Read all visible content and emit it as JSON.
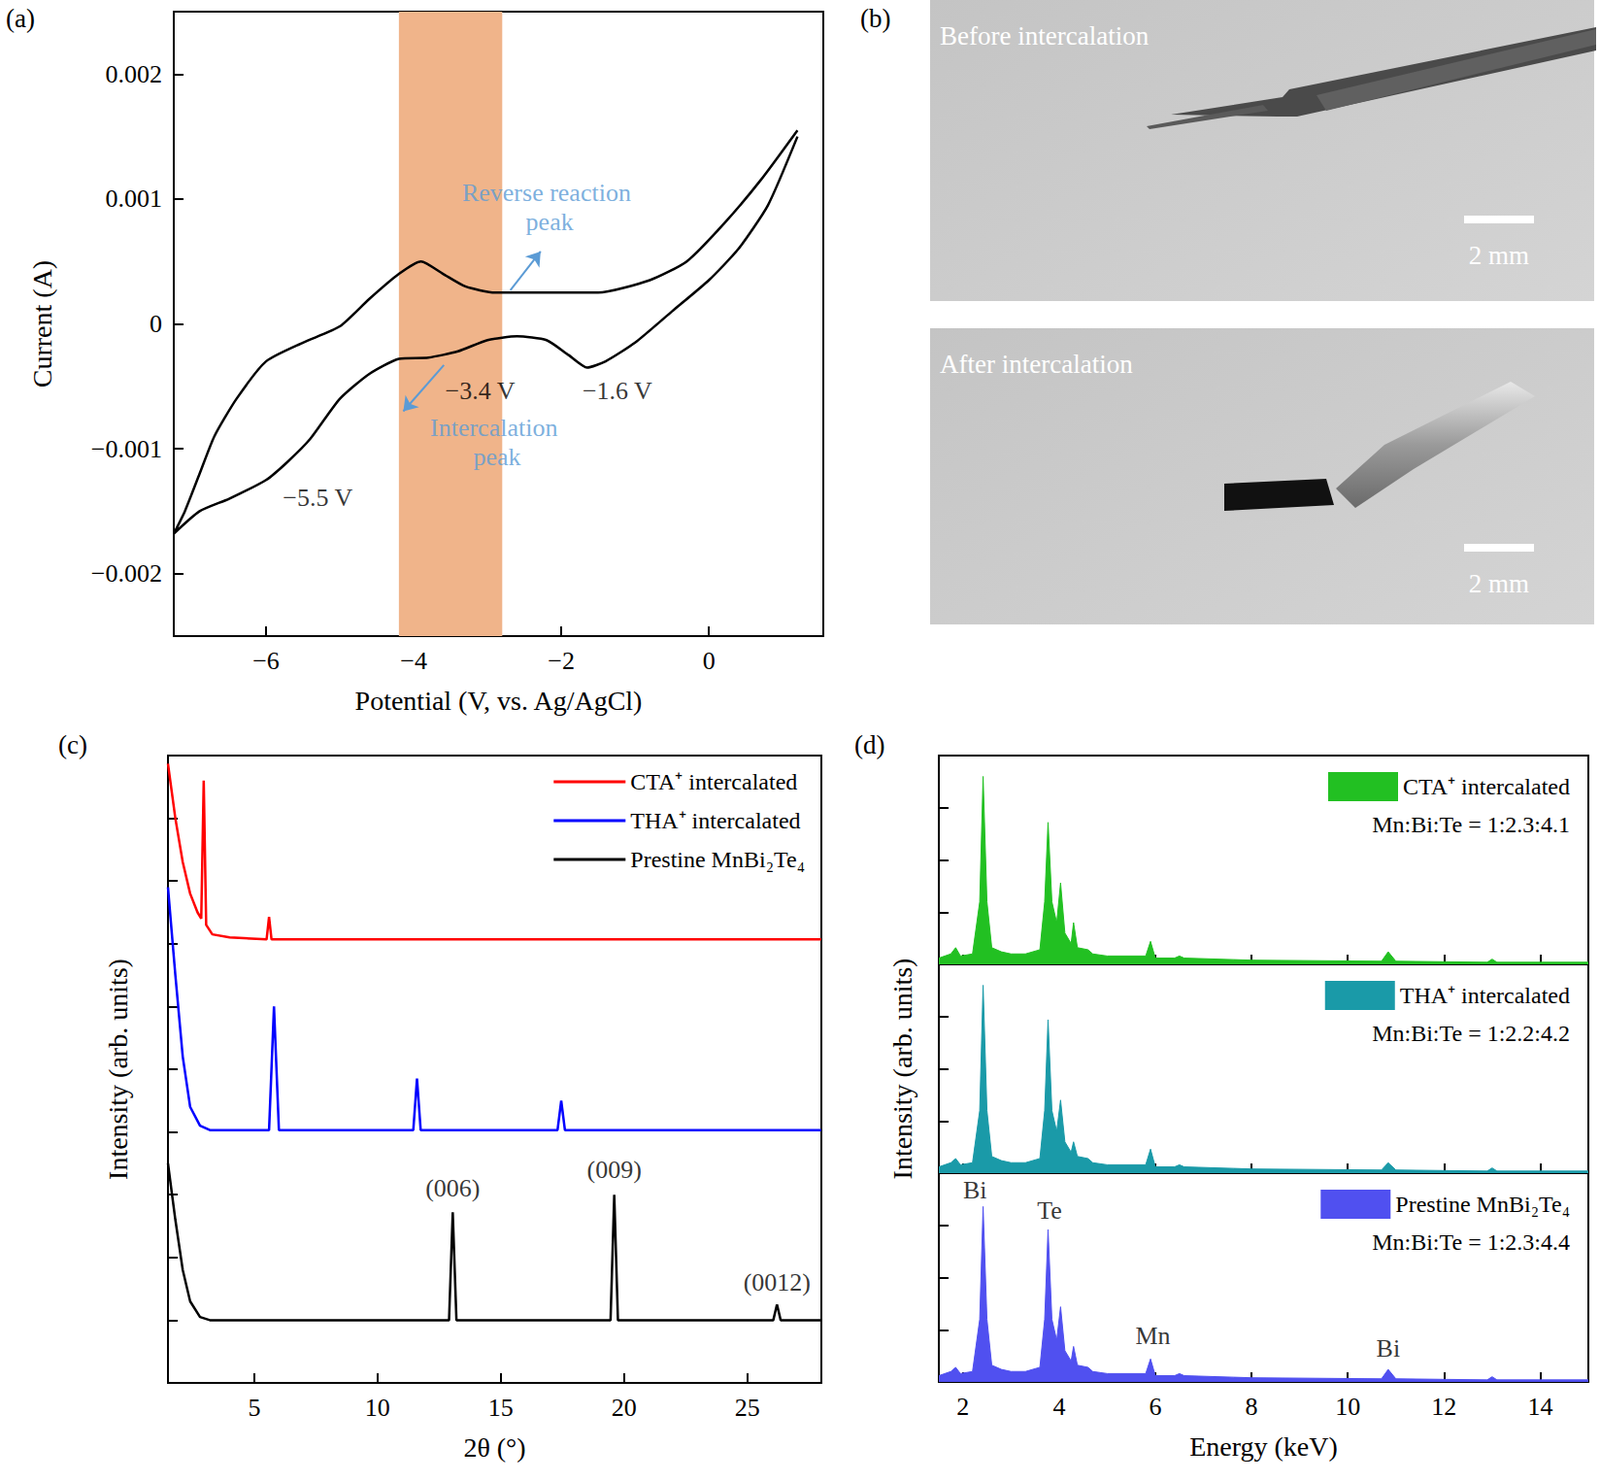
{
  "chart_data": [
    {
      "panel_label": "(a)",
      "type": "line",
      "x_label": "Potential (V, vs. Ag/AgCl)",
      "y_label": "Current (A)",
      "x": [
        1.2,
        0.8,
        0.4,
        0,
        -0.5,
        -1.0,
        -1.4,
        -1.65,
        -1.9,
        -2.2,
        -2.6,
        -3.0,
        -3.4,
        -3.8,
        -4.2,
        -4.6,
        -5.0,
        -5.4,
        -5.7,
        -6.0,
        -6.5,
        -6.9,
        -7.25,
        -7.1,
        -6.9,
        -6.7,
        -6.4,
        -6.0,
        -5.5,
        -5.0,
        -4.6,
        -4.2,
        -3.9,
        -3.6,
        -3.3,
        -2.9,
        -2.5,
        -1.5,
        -0.8,
        -0.3,
        0.2,
        0.7,
        1.2
      ],
      "values": [
        0.0015,
        0.00095,
        0.0006,
        0.00035,
        0.0001,
        -0.00015,
        -0.0003,
        -0.00035,
        -0.00025,
        -0.00013,
        -0.0001,
        -0.00013,
        -0.00022,
        -0.00027,
        -0.00028,
        -0.0004,
        -0.0006,
        -0.00092,
        -0.0011,
        -0.00125,
        -0.0014,
        -0.0015,
        -0.00168,
        -0.0015,
        -0.0012,
        -0.0009,
        -0.0006,
        -0.0003,
        -0.00015,
        -2e-05,
        0.0002,
        0.0004,
        0.0005,
        0.0004,
        0.0003,
        0.00025,
        0.00025,
        0.00025,
        0.00035,
        0.0005,
        0.0008,
        0.00115,
        0.00155
      ],
      "color": "#000000",
      "xlim": [
        -7.25,
        1.55
      ],
      "xticks": [
        {
          "value": -6,
          "label": "−6"
        },
        {
          "value": -4,
          "label": "−4"
        },
        {
          "value": -2,
          "label": "−2"
        },
        0
      ],
      "ylim": [
        -0.0025,
        0.0025
      ],
      "yticks": [
        {
          "value": -0.002,
          "label": "−0.002"
        },
        {
          "value": -0.001,
          "label": "−0.001"
        },
        0,
        0.001,
        0.002
      ],
      "shaded_range": [
        -4.2,
        -2.8
      ],
      "shaded_color": "#f0b48a",
      "annotations": [
        {
          "text": "Reverse reaction peak",
          "x": -2.2,
          "y": 0.00093,
          "color": "#5b9bd5"
        },
        {
          "text": "Intercalation peak",
          "x": -2.87,
          "y": -0.00095,
          "color": "#5b9bd5"
        },
        {
          "text": "−3.4 V",
          "x": -3.1,
          "y": -0.00054,
          "color": "#000000"
        },
        {
          "text": "−1.6 V",
          "x": -1.24,
          "y": -0.00054,
          "color": "#000000"
        },
        {
          "text": "−5.5 V",
          "x": -5.3,
          "y": -0.00139,
          "color": "#000000"
        }
      ],
      "arrows": [
        {
          "from": [
            -2.69,
            0.00027
          ],
          "to": [
            -2.28,
            0.00058
          ],
          "color": "#5b9bd5"
        },
        {
          "from": [
            -3.59,
            -0.00033
          ],
          "to": [
            -4.14,
            -0.0007
          ],
          "color": "#5b9bd5"
        }
      ],
      "grid": false
    },
    {
      "panel_label": "(c)",
      "type": "line",
      "x_label": "2θ (°)",
      "y_label": "Intensity (arb. units)",
      "series": [
        {
          "name": "CTA⁺ intercalated",
          "color": "#ff0000",
          "x": [
            1.5,
            1.8,
            2.1,
            2.4,
            2.7,
            2.85,
            2.95,
            3.05,
            3.3,
            4.0,
            5.5,
            5.6,
            5.7,
            28
          ],
          "values": [
            9.87,
            9.0,
            8.3,
            7.8,
            7.5,
            7.4,
            9.6,
            7.3,
            7.15,
            7.1,
            7.07,
            7.43,
            7.07,
            7.07
          ]
        },
        {
          "name": "THA⁺ intercalated",
          "color": "#0000ff",
          "x": [
            1.5,
            1.8,
            2.1,
            2.4,
            2.8,
            3.2,
            5.6,
            5.8,
            6.0,
            11.45,
            11.6,
            11.75,
            17.3,
            17.45,
            17.6,
            28
          ],
          "values": [
            7.9,
            6.5,
            5.2,
            4.4,
            4.1,
            4.03,
            4.03,
            6.0,
            4.03,
            4.03,
            4.85,
            4.03,
            4.03,
            4.5,
            4.03,
            4.03
          ]
        },
        {
          "name": "Prestine MnBi₂Te₄",
          "color": "#000000",
          "x": [
            1.5,
            1.8,
            2.1,
            2.4,
            2.8,
            3.2,
            12.9,
            13.05,
            13.2,
            19.45,
            19.6,
            19.75,
            26.05,
            26.2,
            26.35,
            28
          ],
          "values": [
            3.5,
            2.6,
            1.8,
            1.3,
            1.05,
            1.0,
            1.0,
            2.72,
            1.0,
            1.0,
            3.0,
            1.0,
            1.0,
            1.25,
            1.0,
            1.0
          ]
        }
      ],
      "annotations": [
        {
          "text": "(006)",
          "x": 13.05,
          "y": 3.1
        },
        {
          "text": "(009)",
          "x": 19.6,
          "y": 3.4
        },
        {
          "text": "(0012)",
          "x": 26.2,
          "y": 1.6
        }
      ],
      "xlim": [
        1.5,
        28
      ],
      "xticks": [
        5,
        10,
        15,
        20,
        25
      ],
      "ylim": [
        0,
        10
      ],
      "yticks": [
        0,
        1,
        2,
        3,
        4,
        5,
        6,
        7,
        8,
        9,
        10
      ],
      "tick_labels": "x",
      "legend": "upper right",
      "grid": false
    },
    {
      "panel_label": "(d)",
      "type": "area",
      "x_label": "Energy (keV)",
      "y_label": "Intensity (arb. units)",
      "x": [
        1.5,
        1.75,
        1.85,
        1.95,
        2.2,
        2.35,
        2.42,
        2.5,
        2.6,
        2.8,
        3.0,
        3.3,
        3.6,
        3.7,
        3.77,
        3.85,
        3.95,
        4.03,
        4.12,
        4.25,
        4.3,
        4.38,
        4.6,
        4.7,
        5.0,
        5.8,
        5.9,
        6.0,
        6.4,
        6.5,
        6.6,
        8.0,
        10.7,
        10.84,
        11.0,
        12.9,
        13.0,
        13.1,
        15.0
      ],
      "series": [
        {
          "name": "CTA⁺ intercalated",
          "color": "#22c022",
          "composition": "Mn:Bi:Te = 1:2.3:4.1",
          "values": [
            0.03,
            0.05,
            0.08,
            0.04,
            0.05,
            0.3,
            0.9,
            0.3,
            0.08,
            0.06,
            0.05,
            0.05,
            0.07,
            0.3,
            0.68,
            0.3,
            0.2,
            0.39,
            0.15,
            0.1,
            0.2,
            0.08,
            0.07,
            0.05,
            0.04,
            0.04,
            0.11,
            0.03,
            0.03,
            0.04,
            0.03,
            0.02,
            0.015,
            0.06,
            0.015,
            0.01,
            0.025,
            0.01,
            0.01
          ]
        },
        {
          "name": "THA⁺ intercalated",
          "color": "#1a9aa8",
          "composition": "Mn:Bi:Te = 1:2.2:4.2",
          "values": [
            0.03,
            0.05,
            0.07,
            0.04,
            0.05,
            0.3,
            0.9,
            0.3,
            0.08,
            0.06,
            0.05,
            0.05,
            0.07,
            0.3,
            0.735,
            0.3,
            0.2,
            0.35,
            0.15,
            0.1,
            0.15,
            0.08,
            0.07,
            0.05,
            0.04,
            0.04,
            0.115,
            0.03,
            0.03,
            0.04,
            0.03,
            0.02,
            0.015,
            0.05,
            0.015,
            0.01,
            0.025,
            0.01,
            0.01
          ]
        },
        {
          "name": "Prestine MnBi₂Te₄",
          "color": "#5050f0",
          "composition": "Mn:Bi:Te = 1:2.3:4.4",
          "values": [
            0.03,
            0.05,
            0.07,
            0.04,
            0.05,
            0.3,
            0.84,
            0.3,
            0.08,
            0.06,
            0.05,
            0.05,
            0.07,
            0.3,
            0.73,
            0.3,
            0.2,
            0.36,
            0.15,
            0.1,
            0.17,
            0.08,
            0.07,
            0.05,
            0.04,
            0.04,
            0.11,
            0.03,
            0.03,
            0.04,
            0.03,
            0.02,
            0.015,
            0.06,
            0.015,
            0.01,
            0.025,
            0.01,
            0.01
          ],
          "annotations": [
            {
              "text": "Bi",
              "x": 2.25,
              "y": 0.92
            },
            {
              "text": "Te",
              "x": 3.8,
              "y": 0.82
            },
            {
              "text": "Mn",
              "x": 5.95,
              "y": 0.22
            },
            {
              "text": "Bi",
              "x": 10.84,
              "y": 0.16
            }
          ]
        }
      ],
      "xlim": [
        1.5,
        15
      ],
      "xticks": [
        2,
        4,
        6,
        8,
        10,
        12,
        14
      ],
      "ylim": [
        0,
        1
      ],
      "yticks": [
        0,
        0.25,
        0.5,
        0.75,
        1
      ],
      "tick_labels": "x",
      "legend": "upper right",
      "grid": false
    }
  ],
  "photos": {
    "panel_label": "(b)",
    "items": [
      {
        "caption": "Before intercalation",
        "scale_bar": "2 mm"
      },
      {
        "caption": "After intercalation",
        "scale_bar": "2 mm"
      }
    ]
  }
}
